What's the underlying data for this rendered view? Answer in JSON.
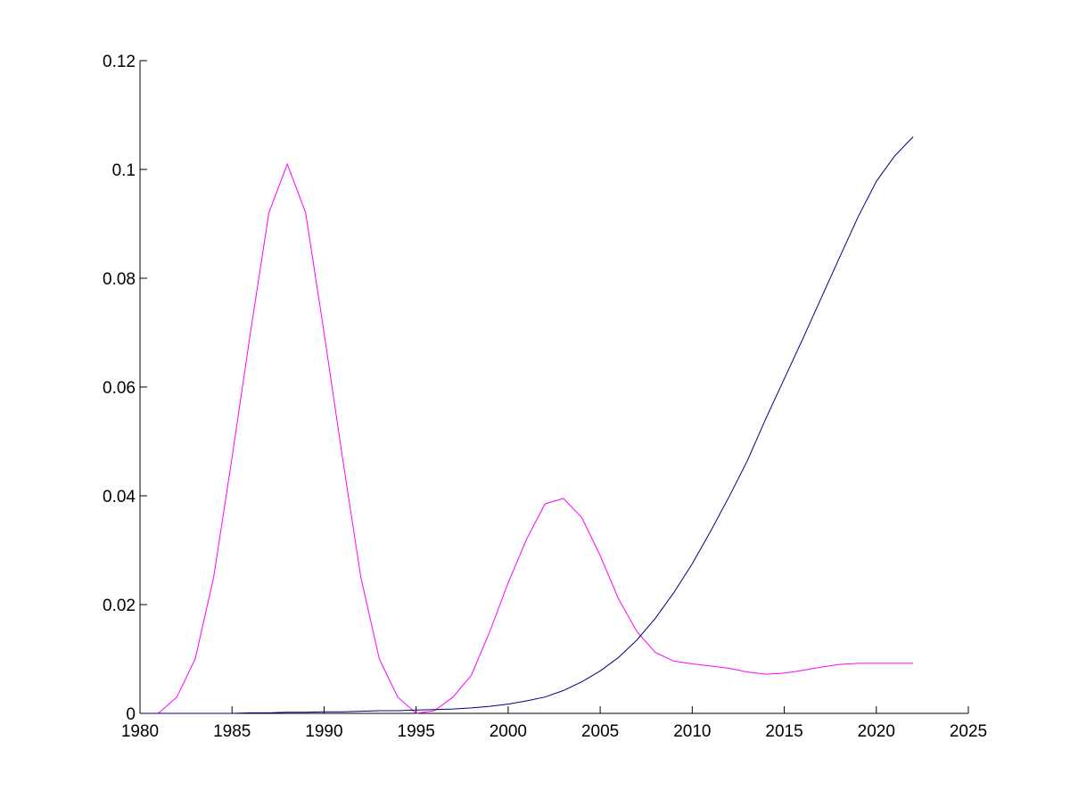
{
  "chart_data": {
    "type": "line",
    "title": "",
    "xlabel": "",
    "ylabel": "",
    "xlim": [
      1980,
      2025
    ],
    "ylim": [
      0,
      0.12
    ],
    "xticks": [
      1980,
      1985,
      1990,
      1995,
      2000,
      2005,
      2010,
      2015,
      2020,
      2025
    ],
    "xtick_labels": [
      "1980",
      "1985",
      "1990",
      "1995",
      "2000",
      "2005",
      "2010",
      "2015",
      "2020",
      "2025"
    ],
    "yticks": [
      0,
      0.02,
      0.04,
      0.06,
      0.08,
      0.1,
      0.12
    ],
    "ytick_labels": [
      "0",
      "0.02",
      "0.04",
      "0.06",
      "0.08",
      "0.1",
      "0.12"
    ],
    "grid": false,
    "legend": "none",
    "x": [
      1980,
      1981,
      1982,
      1983,
      1984,
      1985,
      1986,
      1987,
      1988,
      1989,
      1990,
      1991,
      1992,
      1993,
      1994,
      1995,
      1996,
      1997,
      1998,
      1999,
      2000,
      2001,
      2002,
      2003,
      2004,
      2005,
      2006,
      2007,
      2008,
      2009,
      2010,
      2011,
      2012,
      2013,
      2014,
      2015,
      2016,
      2017,
      2018,
      2019,
      2020,
      2021,
      2022
    ],
    "series": [
      {
        "color": "#ff00ff",
        "values": [
          0,
          0,
          0.003,
          0.01,
          0.025,
          0.047,
          0.07,
          0.092,
          0.101,
          0.092,
          0.07,
          0.047,
          0.025,
          0.01,
          0.003,
          0,
          0.0005,
          0.003,
          0.007,
          0.015,
          0.024,
          0.032,
          0.0385,
          0.0395,
          0.036,
          0.029,
          0.021,
          0.015,
          0.0112,
          0.0096,
          0.0091,
          0.0087,
          0.0083,
          0.0076,
          0.0072,
          0.0074,
          0.0079,
          0.0085,
          0.009,
          0.0092,
          0.0092,
          0.0092,
          0.0092
        ]
      },
      {
        "color": "#000080",
        "values": [
          0,
          0,
          0,
          0,
          0,
          0,
          0.0001,
          0.0001,
          0.0002,
          0.0002,
          0.0003,
          0.0003,
          0.0004,
          0.0005,
          0.0005,
          0.0006,
          0.0007,
          0.0008,
          0.001,
          0.0013,
          0.0017,
          0.0023,
          0.003,
          0.0042,
          0.0058,
          0.0078,
          0.0103,
          0.0135,
          0.0175,
          0.0222,
          0.0275,
          0.0335,
          0.0398,
          0.0465,
          0.0542,
          0.0615,
          0.0688,
          0.0763,
          0.0838,
          0.0912,
          0.0978,
          0.1025,
          0.106
        ]
      }
    ]
  }
}
